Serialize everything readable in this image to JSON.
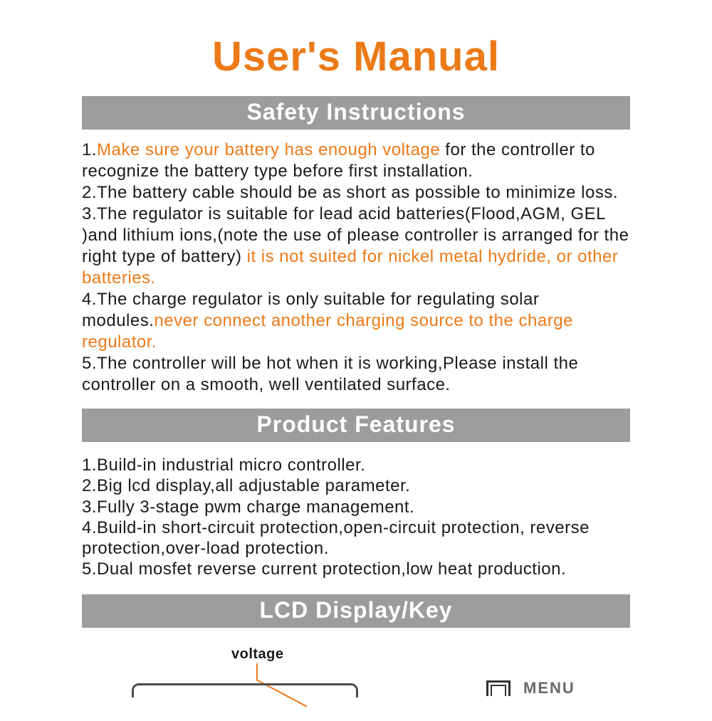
{
  "colors": {
    "accent_orange": "#eb7a17",
    "bar_gray": "#9c9c9d",
    "bar_text": "#ffffff",
    "body_text": "#1a1a1a",
    "lcd_border": "#4b4b4c",
    "menu_label": "#6a6a6b",
    "background": "#ffffff"
  },
  "title": "User's Manual",
  "sections": {
    "safety": {
      "header": "Safety Instructions",
      "items": [
        {
          "num": "1.",
          "highlight": "Make sure your battery has enough voltage",
          "rest": " for the controller to recognize the battery type before first installation."
        },
        {
          "num": "2.",
          "text": "The battery cable should be as short as possible to minimize loss."
        },
        {
          "num": "3.",
          "text_a": "The regulator is suitable for lead acid batteries(Flood,AGM, GEL  )and lithium ions,(note the use of please controller is arranged for the right type of battery) ",
          "highlight": "it is not suited for nickel metal hydride, or other batteries."
        },
        {
          "num": "4.",
          "text_a": "The charge regulator is only suitable for regulating solar modules.",
          "highlight": "never connect another charging source to the charge regulator."
        },
        {
          "num": "5.",
          "text": "The controller will be hot when it is working,Please install the controller on a smooth, well ventilated surface."
        }
      ]
    },
    "features": {
      "header": "Product Features",
      "items": [
        "1.Build-in industrial micro controller.",
        "2.Big lcd display,all adjustable parameter.",
        "3.Fully 3-stage pwm charge management.",
        "4.Build-in short-circuit protection,open-circuit protection, reverse protection,over-load protection.",
        "5.Dual mosfet reverse current protection,low heat production."
      ]
    },
    "lcd": {
      "header": "LCD Display/Key",
      "voltage_label": "voltage",
      "menu_label": "MENU"
    }
  }
}
